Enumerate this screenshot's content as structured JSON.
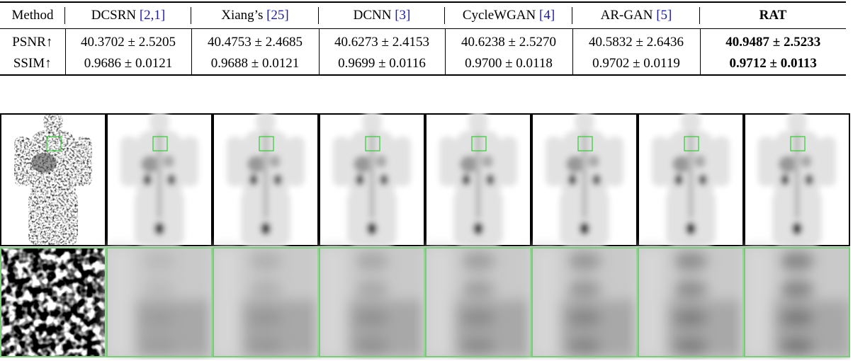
{
  "table": {
    "header": [
      {
        "name": "Method"
      },
      {
        "name": "DCSRN",
        "cite": "[2,1]"
      },
      {
        "name": "Xiang’s",
        "cite": "[25]"
      },
      {
        "name": "DCNN",
        "cite": "[3]"
      },
      {
        "name": "CycleWGAN",
        "cite": "[4]"
      },
      {
        "name": "AR-GAN",
        "cite": "[5]"
      },
      {
        "name": "RAT"
      }
    ],
    "rows": [
      [
        "PSNR↑",
        "40.3702 ± 2.5205",
        "40.4753 ± 2.4685",
        "40.6273 ± 2.4153",
        "40.6238 ± 2.5270",
        "40.5832 ± 2.6436",
        "40.9487 ± 2.5233"
      ],
      [
        "SSIM↑",
        "0.9686 ± 0.0121",
        "0.9688 ± 0.0121",
        "0.9699 ± 0.0116",
        "0.9700 ± 0.0118",
        "0.9702 ± 0.0119",
        "0.9712 ± 0.0113"
      ]
    ]
  }
}
